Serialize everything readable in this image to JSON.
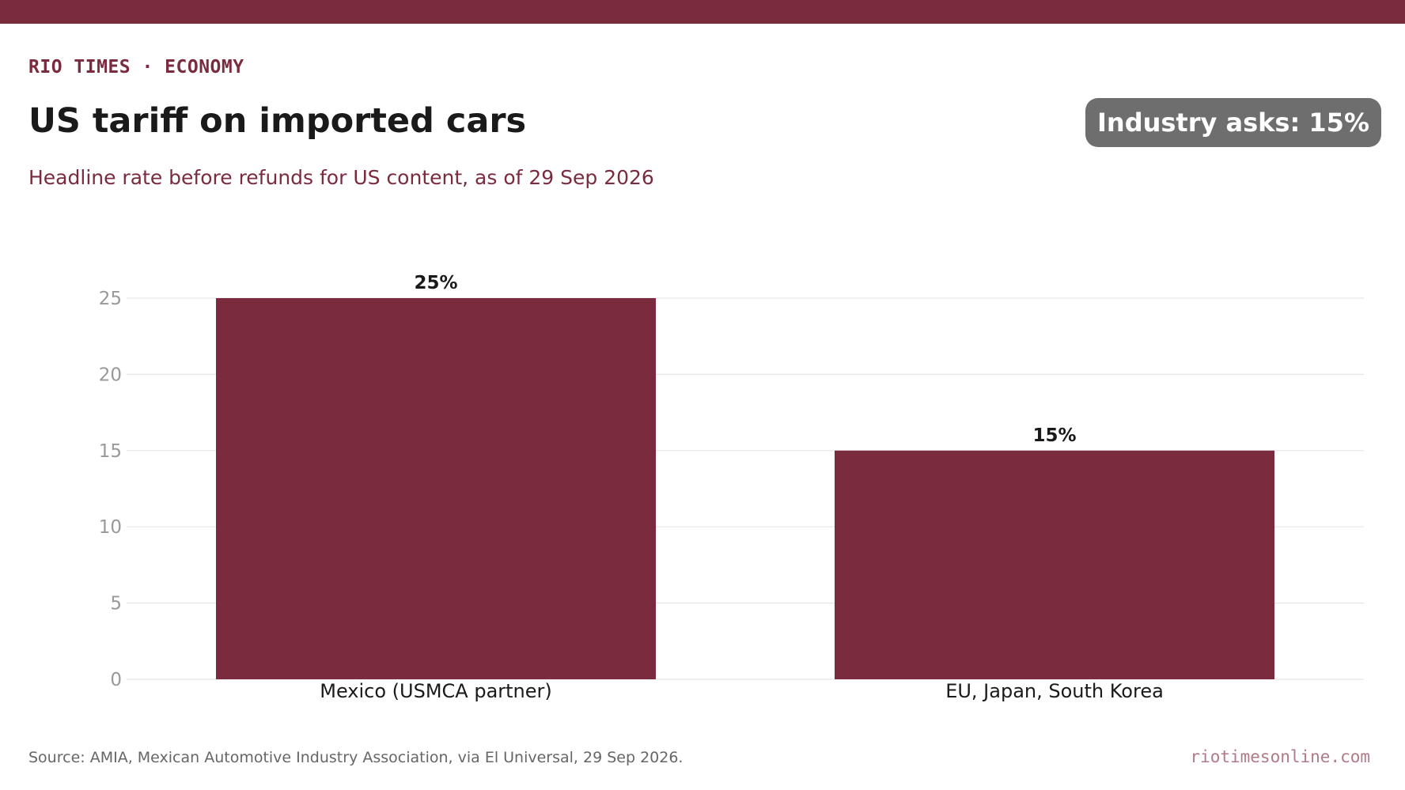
{
  "header": {
    "kicker": "RIO TIMES · ECONOMY",
    "title": "US tariff on imported cars",
    "subtitle": "Headline rate before refunds for US content, as of 29 Sep 2026",
    "badge": "Industry asks: 15%"
  },
  "footer": {
    "source": "Source: AMIA, Mexican Automotive Industry Association, via El Universal, 29 Sep 2026.",
    "site": "riotimesonline.com"
  },
  "colors": {
    "accent": "#7a2b3e",
    "bar": "#7a2b3e",
    "badge": "#6e6e6e",
    "grid": "#e6e6e6",
    "tick": "#999999",
    "text": "#1a1a1a"
  },
  "chart_data": {
    "type": "bar",
    "categories": [
      "Mexico (USMCA partner)",
      "EU, Japan, South Korea"
    ],
    "values": [
      25,
      15
    ],
    "value_labels": [
      "25%",
      "15%"
    ],
    "yticks": [
      0,
      5,
      10,
      15,
      20,
      25
    ],
    "ylim": [
      0,
      25
    ],
    "grid": true,
    "title": "",
    "xlabel": "",
    "ylabel": ""
  }
}
